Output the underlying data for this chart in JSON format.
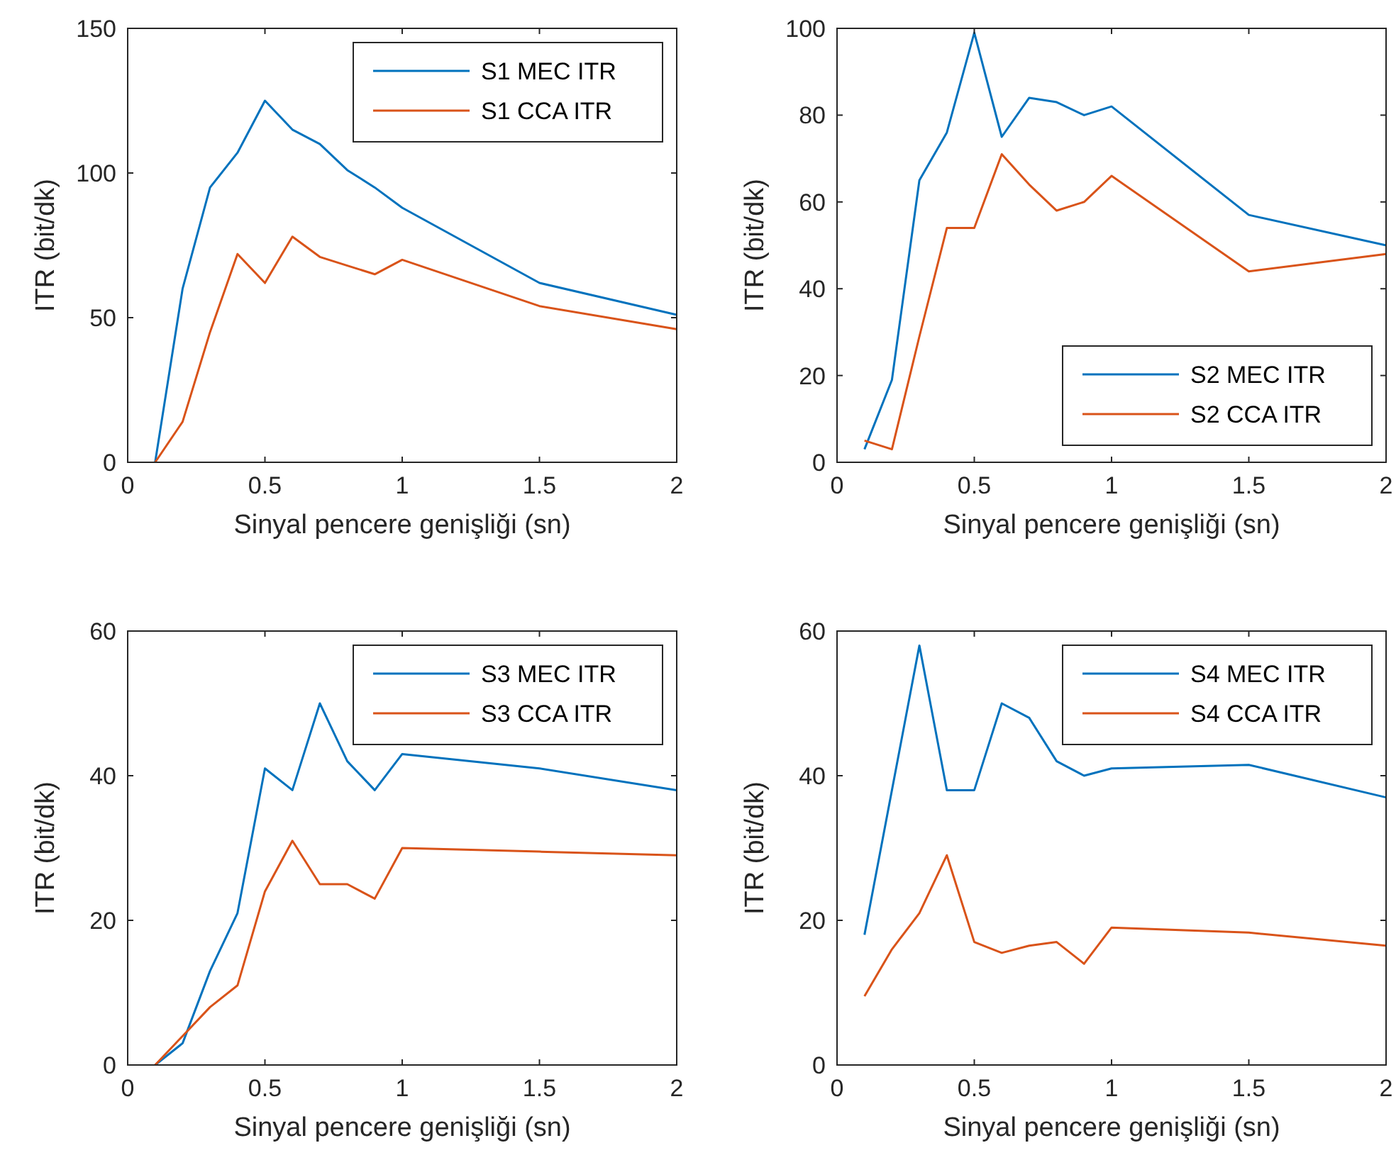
{
  "chart_data": [
    {
      "type": "line",
      "xlabel": "Sinyal pencere genişliği (sn)",
      "ylabel": "ITR (bit/dk)",
      "xlim": [
        0,
        2
      ],
      "xticks": [
        0,
        0.5,
        1,
        1.5,
        2
      ],
      "ylim": [
        0,
        150
      ],
      "yticks": [
        0,
        50,
        100,
        150
      ],
      "legend": "top right",
      "grid": false,
      "x": [
        0.1,
        0.2,
        0.3,
        0.4,
        0.5,
        0.6,
        0.7,
        0.8,
        0.9,
        1.0,
        1.5,
        2.0
      ],
      "series": [
        {
          "name": "S1 MEC ITR",
          "color": "#0072bd",
          "values": [
            0,
            60,
            95,
            107,
            125,
            115,
            110,
            101,
            95,
            88,
            62,
            51
          ]
        },
        {
          "name": "S1 CCA ITR",
          "color": "#d95319",
          "values": [
            0,
            14,
            45,
            72,
            62,
            78,
            71,
            68,
            65,
            70,
            54,
            46
          ]
        }
      ]
    },
    {
      "type": "line",
      "xlabel": "Sinyal pencere genişliği (sn)",
      "ylabel": "ITR (bit/dk)",
      "xlim": [
        0,
        2
      ],
      "xticks": [
        0,
        0.5,
        1,
        1.5,
        2
      ],
      "ylim": [
        0,
        100
      ],
      "yticks": [
        0,
        20,
        40,
        60,
        80,
        100
      ],
      "legend": "bottom right",
      "grid": false,
      "x": [
        0.1,
        0.2,
        0.3,
        0.4,
        0.5,
        0.6,
        0.7,
        0.8,
        0.9,
        1.0,
        1.5,
        2.0
      ],
      "series": [
        {
          "name": "S2 MEC ITR",
          "color": "#0072bd",
          "values": [
            3,
            19,
            65,
            76,
            99,
            75,
            84,
            83,
            80,
            82,
            57,
            50
          ]
        },
        {
          "name": "S2 CCA ITR",
          "color": "#d95319",
          "values": [
            5,
            3,
            29,
            54,
            54,
            71,
            64,
            58,
            60,
            66,
            44,
            48
          ]
        }
      ]
    },
    {
      "type": "line",
      "xlabel": "Sinyal pencere genişliği (sn)",
      "ylabel": "ITR (bit/dk)",
      "xlim": [
        0,
        2
      ],
      "xticks": [
        0,
        0.5,
        1,
        1.5,
        2
      ],
      "ylim": [
        0,
        60
      ],
      "yticks": [
        0,
        20,
        40,
        60
      ],
      "legend": "top right",
      "grid": false,
      "x": [
        0.1,
        0.2,
        0.3,
        0.4,
        0.5,
        0.6,
        0.7,
        0.8,
        0.9,
        1.0,
        1.5,
        2.0
      ],
      "series": [
        {
          "name": "S3 MEC ITR",
          "color": "#0072bd",
          "values": [
            0,
            3,
            13,
            21,
            41,
            38,
            50,
            42,
            38,
            43,
            41,
            38
          ]
        },
        {
          "name": "S3 CCA ITR",
          "color": "#d95319",
          "values": [
            0,
            4,
            8,
            11,
            24,
            31,
            25,
            25,
            23,
            30,
            29.5,
            29
          ]
        }
      ]
    },
    {
      "type": "line",
      "xlabel": "Sinyal pencere genişliği (sn)",
      "ylabel": "ITR (bit/dk)",
      "xlim": [
        0,
        2
      ],
      "xticks": [
        0,
        0.5,
        1,
        1.5,
        2
      ],
      "ylim": [
        0,
        60
      ],
      "yticks": [
        0,
        20,
        40,
        60
      ],
      "legend": "top right",
      "grid": false,
      "x": [
        0.1,
        0.2,
        0.3,
        0.4,
        0.5,
        0.6,
        0.7,
        0.8,
        0.9,
        1.0,
        1.5,
        2.0
      ],
      "series": [
        {
          "name": "S4 MEC ITR",
          "color": "#0072bd",
          "values": [
            18,
            38,
            58,
            38,
            38,
            50,
            48,
            42,
            40,
            41,
            41.5,
            37
          ]
        },
        {
          "name": "S4 CCA ITR",
          "color": "#d95319",
          "values": [
            9.5,
            16,
            21,
            29,
            17,
            15.5,
            16.5,
            17,
            14,
            19,
            18.3,
            16.5
          ]
        }
      ]
    }
  ]
}
